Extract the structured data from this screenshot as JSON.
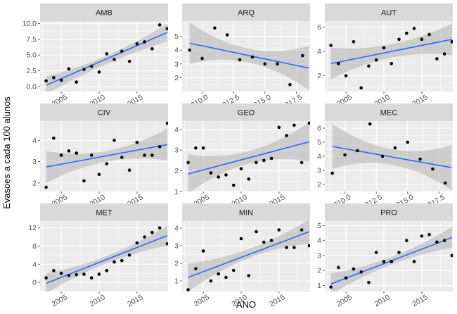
{
  "chart_data": {
    "type": "scatter",
    "subtype": "faceted scatter with linear fit and confidence band",
    "xlabel": "ANO",
    "ylabel": "Evasoes a cada 100 alunos",
    "grid": true,
    "legend": "none",
    "colors": {
      "panel_background": "#ebebeb",
      "strip_background": "#d9d9d9",
      "gridline": "#ffffff",
      "point": "#000000",
      "fit_line": "#3366ff",
      "confidence_band": "#b3b3b3"
    },
    "facets": [
      {
        "label": "AMB",
        "xlim": [
          2002.2,
          2019.1
        ],
        "ylim": [
          -0.8,
          10.4
        ],
        "xticks": [
          2005,
          2010,
          2015
        ],
        "xtick_labels": [
          "2005",
          "2010",
          "2015"
        ],
        "yticks": [
          0.0,
          2.5,
          5.0,
          7.5,
          10.0
        ],
        "ytick_labels": [
          "0.0",
          "2.5",
          "5.0",
          "7.5",
          "10.0"
        ],
        "x": [
          2003,
          2004,
          2005,
          2006,
          2007,
          2008,
          2009,
          2010,
          2011,
          2012,
          2013,
          2014,
          2015,
          2016,
          2017,
          2018,
          2019
        ],
        "y": [
          0.9,
          1.4,
          1.0,
          2.8,
          0.7,
          2.7,
          3.2,
          2.3,
          5.2,
          4.3,
          5.6,
          4.0,
          6.8,
          7.1,
          6.0,
          9.8,
          9.2
        ],
        "fit": {
          "x0": 2003,
          "y0": 0.2,
          "x1": 2019,
          "y1": 8.6
        },
        "band": {
          "upper0": 1.6,
          "upper_mid": 4.9,
          "upper1": 10.0,
          "lower0": -1.2,
          "lower_mid": 3.6,
          "lower1": 7.2
        }
      },
      {
        "label": "ARQ",
        "xlim": [
          2008.4,
          2018.6
        ],
        "ylim": [
          1.0,
          6.1
        ],
        "xticks": [
          2010.0,
          2012.5,
          2015.0,
          2017.5
        ],
        "xtick_labels": [
          "2010.0",
          "2012.5",
          "2015.0",
          "2017.5"
        ],
        "yticks": [
          2,
          3,
          4,
          5
        ],
        "ytick_labels": [
          "2",
          "3",
          "4",
          "5"
        ],
        "x": [
          2009,
          2010,
          2011,
          2012,
          2013,
          2014,
          2015,
          2016,
          2017,
          2018
        ],
        "y": [
          4.0,
          3.4,
          5.6,
          5.1,
          3.3,
          3.5,
          3.0,
          3.0,
          1.5,
          3.6
        ],
        "fit": {
          "x0": 2009,
          "y0": 4.5,
          "x1": 2018.5,
          "y1": 2.7
        },
        "band": {
          "upper0": 6.0,
          "upper_mid": 4.1,
          "upper1": 4.3,
          "lower0": 3.0,
          "lower_mid": 3.1,
          "lower1": 1.1
        }
      },
      {
        "label": "AUT",
        "xlim": [
          2002.2,
          2019.1
        ],
        "ylim": [
          0.7,
          6.5
        ],
        "xticks": [
          2005,
          2010,
          2015
        ],
        "xtick_labels": [
          "2005",
          "2010",
          "2015"
        ],
        "yticks": [
          2,
          4,
          6
        ],
        "ytick_labels": [
          "2",
          "4",
          "6"
        ],
        "x": [
          2003,
          2004,
          2005,
          2006,
          2007,
          2008,
          2009,
          2010,
          2011,
          2012,
          2013,
          2014,
          2015,
          2016,
          2017,
          2018,
          2019
        ],
        "y": [
          4.5,
          3.0,
          2.0,
          4.8,
          1.0,
          2.8,
          3.3,
          4.3,
          3.0,
          5.0,
          5.5,
          5.9,
          5.0,
          5.4,
          3.4,
          3.8,
          4.8
        ],
        "fit": {
          "x0": 2003,
          "y0": 3.0,
          "x1": 2019,
          "y1": 5.0
        },
        "band": {
          "upper0": 4.3,
          "upper_mid": 4.6,
          "upper1": 6.3,
          "lower0": 1.7,
          "lower_mid": 3.5,
          "lower1": 3.7
        }
      },
      {
        "label": "CIV",
        "xlim": [
          2002.2,
          2019.1
        ],
        "ylim": [
          1.6,
          4.9
        ],
        "xticks": [
          2005,
          2010,
          2015
        ],
        "xtick_labels": [
          "2005",
          "2010",
          "2015"
        ],
        "yticks": [
          2,
          3,
          4
        ],
        "ytick_labels": [
          "2",
          "3",
          "4"
        ],
        "x": [
          2003,
          2004,
          2005,
          2006,
          2007,
          2008,
          2009,
          2010,
          2011,
          2012,
          2013,
          2014,
          2015,
          2016,
          2017,
          2018,
          2019
        ],
        "y": [
          1.8,
          4.1,
          3.3,
          3.5,
          3.4,
          2.1,
          3.3,
          2.4,
          2.9,
          4.0,
          3.2,
          2.6,
          3.9,
          3.3,
          3.3,
          3.7,
          4.8
        ],
        "fit": {
          "x0": 2003,
          "y0": 2.75,
          "x1": 2019,
          "y1": 3.8
        },
        "band": {
          "upper0": 3.5,
          "upper_mid": 3.5,
          "upper1": 4.55,
          "lower0": 2.0,
          "lower_mid": 3.0,
          "lower1": 3.05
        }
      },
      {
        "label": "GEO",
        "xlim": [
          2002.2,
          2019.1
        ],
        "ylim": [
          1.0,
          4.4
        ],
        "xticks": [
          2005,
          2010,
          2015
        ],
        "xtick_labels": [
          "2005",
          "2010",
          "2015"
        ],
        "yticks": [
          1,
          2,
          3,
          4
        ],
        "ytick_labels": [
          "1",
          "2",
          "3",
          "4"
        ],
        "x": [
          2003,
          2004,
          2005,
          2006,
          2007,
          2008,
          2009,
          2010,
          2011,
          2012,
          2013,
          2014,
          2015,
          2016,
          2017,
          2018,
          2019
        ],
        "y": [
          2.4,
          3.1,
          3.1,
          1.9,
          1.7,
          1.8,
          1.3,
          2.1,
          1.6,
          2.4,
          2.5,
          2.6,
          4.1,
          3.7,
          4.2,
          2.4,
          4.3
        ],
        "fit": {
          "x0": 2003,
          "y0": 1.85,
          "x1": 2019,
          "y1": 3.4
        },
        "band": {
          "upper0": 2.8,
          "upper_mid": 2.95,
          "upper1": 4.35,
          "lower0": 0.9,
          "lower_mid": 2.35,
          "lower1": 2.45
        }
      },
      {
        "label": "MEC",
        "xlim": [
          2008.4,
          2018.6
        ],
        "ylim": [
          1.5,
          6.5
        ],
        "xticks": [
          2010.0,
          2012.5,
          2015.0,
          2017.5
        ],
        "xtick_labels": [
          "2010.0",
          "2012.5",
          "2015.0",
          "2017.5"
        ],
        "yticks": [
          2,
          3,
          4,
          5,
          6
        ],
        "ytick_labels": [
          "2",
          "3",
          "4",
          "5",
          "6"
        ],
        "x": [
          2009,
          2010,
          2011,
          2012,
          2013,
          2014,
          2015,
          2016,
          2017,
          2018
        ],
        "y": [
          2.8,
          4.1,
          4.4,
          6.3,
          4.0,
          4.6,
          5.0,
          3.8,
          3.1,
          2.1
        ],
        "fit": {
          "x0": 2009,
          "y0": 4.7,
          "x1": 2018.5,
          "y1": 3.2
        },
        "band": {
          "upper0": 6.3,
          "upper_mid": 4.5,
          "upper1": 4.8,
          "lower0": 3.1,
          "lower_mid": 3.4,
          "lower1": 1.6
        }
      },
      {
        "label": "MET",
        "xlim": [
          2002.2,
          2019.1
        ],
        "ylim": [
          -2.0,
          13.5
        ],
        "xticks": [
          2005,
          2010,
          2015
        ],
        "xtick_labels": [
          "2005",
          "2010",
          "2015"
        ],
        "yticks": [
          0,
          4,
          8,
          12
        ],
        "ytick_labels": [
          "0",
          "4",
          "8",
          "12"
        ],
        "x": [
          2003,
          2004,
          2005,
          2006,
          2007,
          2008,
          2009,
          2010,
          2011,
          2012,
          2013,
          2014,
          2015,
          2016,
          2017,
          2018,
          2019
        ],
        "y": [
          1.0,
          2.6,
          2.0,
          1.5,
          1.7,
          1.8,
          1.0,
          1.8,
          2.6,
          4.5,
          4.8,
          6.0,
          8.7,
          10.0,
          11.0,
          12.0,
          8.5
        ],
        "fit": {
          "x0": 2003,
          "y0": -0.2,
          "x1": 2019,
          "y1": 10.3
        },
        "band": {
          "upper0": 2.0,
          "upper_mid": 5.8,
          "upper1": 12.5,
          "lower0": -2.4,
          "lower_mid": 4.2,
          "lower1": 8.1
        }
      },
      {
        "label": "MIN",
        "xlim": [
          2002.2,
          2019.1
        ],
        "ylim": [
          0.4,
          4.4
        ],
        "xticks": [
          2005,
          2010,
          2015
        ],
        "xtick_labels": [
          "2005",
          "2010",
          "2015"
        ],
        "yticks": [
          1,
          2,
          3,
          4
        ],
        "ytick_labels": [
          "1",
          "2",
          "3",
          "4"
        ],
        "x": [
          2003,
          2004,
          2005,
          2006,
          2007,
          2008,
          2009,
          2010,
          2011,
          2012,
          2013,
          2014,
          2015,
          2016,
          2017,
          2018,
          2019
        ],
        "y": [
          0.5,
          1.7,
          2.7,
          1.0,
          1.4,
          1.2,
          1.6,
          3.4,
          1.3,
          3.8,
          3.2,
          3.3,
          3.9,
          2.9,
          2.9,
          3.9,
          3.0
        ],
        "fit": {
          "x0": 2003,
          "y0": 1.2,
          "x1": 2019,
          "y1": 3.8
        },
        "band": {
          "upper0": 2.0,
          "upper_mid": 2.8,
          "upper1": 4.5,
          "lower0": 0.4,
          "lower_mid": 2.3,
          "lower1": 3.1
        }
      },
      {
        "label": "PRO",
        "xlim": [
          2002.2,
          2019.1
        ],
        "ylim": [
          0.6,
          5.3
        ],
        "xticks": [
          2005,
          2010,
          2015
        ],
        "xtick_labels": [
          "2005",
          "2010",
          "2015"
        ],
        "yticks": [
          1,
          2,
          3,
          4,
          5
        ],
        "ytick_labels": [
          "1",
          "2",
          "3",
          "4",
          "5"
        ],
        "x": [
          2003,
          2004,
          2005,
          2006,
          2007,
          2008,
          2009,
          2010,
          2011,
          2012,
          2013,
          2014,
          2015,
          2016,
          2017,
          2018,
          2019
        ],
        "y": [
          0.9,
          2.2,
          1.5,
          2.1,
          1.9,
          1.2,
          3.2,
          2.6,
          2.6,
          3.2,
          4.0,
          2.6,
          4.3,
          4.4,
          3.9,
          4.0,
          3.0
        ],
        "fit": {
          "x0": 2003,
          "y0": 1.1,
          "x1": 2019,
          "y1": 4.2
        },
        "band": {
          "upper0": 1.8,
          "upper_mid": 2.9,
          "upper1": 4.9,
          "lower0": 0.4,
          "lower_mid": 2.4,
          "lower1": 3.5
        }
      }
    ]
  }
}
